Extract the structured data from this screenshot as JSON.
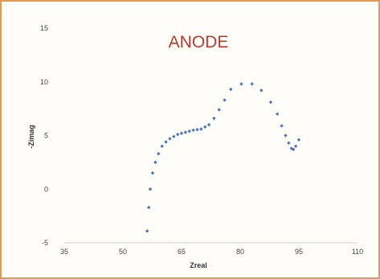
{
  "chart_data": {
    "type": "scatter",
    "title": "ANODE",
    "xlabel": "Zreal",
    "ylabel": "-Zimag",
    "xlim": [
      35,
      110
    ],
    "ylim": [
      -5,
      15
    ],
    "xticks": [
      "35",
      "50",
      "65",
      "80",
      "95",
      "110"
    ],
    "yticks": [
      "-5",
      "0",
      "5",
      "10",
      "15"
    ],
    "grid": false,
    "marker_color": "#4a72c4",
    "series": [
      {
        "x": [
          56.2,
          56.6,
          57.0,
          57.6,
          58.3,
          59.1,
          60.0,
          61.0,
          62.0,
          63.0,
          64.0,
          65.0,
          66.0,
          67.0,
          68.0,
          69.0,
          70.0,
          71.0,
          72.0,
          73.3,
          74.6,
          76.0,
          77.6,
          80.3,
          83.0,
          85.4,
          87.8,
          89.5,
          90.6,
          91.6,
          92.4,
          93.1,
          93.6,
          94.2,
          95.0
        ],
        "y": [
          -3.9,
          -1.7,
          0.0,
          1.5,
          2.5,
          3.3,
          4.0,
          4.4,
          4.7,
          4.9,
          5.1,
          5.2,
          5.3,
          5.4,
          5.5,
          5.55,
          5.6,
          5.8,
          6.0,
          6.6,
          7.4,
          8.3,
          9.3,
          9.8,
          9.8,
          9.2,
          8.1,
          7.0,
          5.9,
          5.0,
          4.3,
          3.8,
          3.7,
          4.0,
          4.6
        ]
      }
    ]
  }
}
